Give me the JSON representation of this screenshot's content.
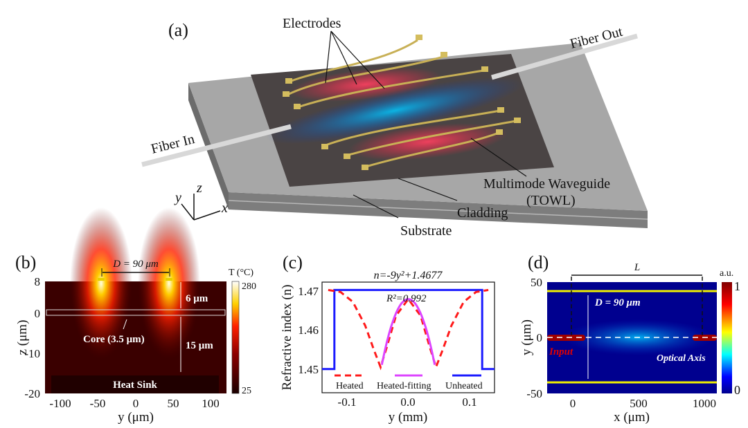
{
  "panel_a": {
    "label": "(a)",
    "electrodes": "Electrodes",
    "fiber_in": "Fiber In",
    "fiber_out": "Fiber Out",
    "waveguide": "Multimode Waveguide",
    "towl": "(TOWL)",
    "cladding": "Cladding",
    "substrate": "Substrate",
    "axes": {
      "y": "y",
      "z": "z",
      "x": "x"
    }
  },
  "panel_b": {
    "label": "(b)",
    "spacing": "D = 90 μm",
    "colorbar_title": "T (°C)",
    "colorbar_max": "280",
    "colorbar_min": "25",
    "dim_top": "6 μm",
    "dim_bottom": "15 μm",
    "core": "Core  (3.5 μm)",
    "heat_sink": "Heat Sink",
    "xlabel": "y (μm)",
    "ylabel": "z (μm)",
    "xticks": [
      "-100",
      "-50",
      "0",
      "50",
      "100"
    ],
    "yticks": [
      "8",
      "0",
      "-10",
      "-20"
    ]
  },
  "panel_d": {
    "label": "(d)",
    "length": "L",
    "spacing": "D = 90 μm",
    "input": "Input",
    "optical_axis": "Optical Axis",
    "colorbar_title": "a.u.",
    "colorbar_max": "1",
    "colorbar_min": "0",
    "xlabel": "x (μm)",
    "ylabel": "y (μm)",
    "xticks": [
      "0",
      "500",
      "1000"
    ],
    "yticks": [
      "50",
      "0",
      "-50"
    ]
  },
  "chart_data": {
    "type": "line",
    "panel_label": "(c)",
    "title": "n=-9y²+1.4677",
    "annotation": "R²=0.992",
    "xlabel": "y (mm)",
    "ylabel": "Refractive index (n)",
    "xlim": [
      -0.14,
      0.14
    ],
    "ylim": [
      1.444,
      1.472
    ],
    "xticks": [
      "-0.1",
      "0.0",
      "0.1"
    ],
    "yticks": [
      "1.47",
      "1.46",
      "1.45"
    ],
    "legend_position": "bottom",
    "series": [
      {
        "name": "Heated",
        "color": "#ff1a1a",
        "style": "dashed",
        "x": [
          -0.13,
          -0.11,
          -0.09,
          -0.07,
          -0.055,
          -0.045,
          -0.035,
          -0.02,
          0,
          0.02,
          0.035,
          0.045,
          0.055,
          0.07,
          0.09,
          0.11,
          0.13
        ],
        "y": [
          1.47,
          1.4695,
          1.467,
          1.461,
          1.4545,
          1.4505,
          1.4555,
          1.4635,
          1.4677,
          1.4635,
          1.4555,
          1.4505,
          1.4545,
          1.461,
          1.467,
          1.4695,
          1.47
        ]
      },
      {
        "name": "Heated-fitting",
        "color": "#dd44ff",
        "style": "solid",
        "fit": {
          "a": -9,
          "c": 1.4677,
          "range": [
            -0.043,
            0.043
          ]
        }
      },
      {
        "name": "Unheated",
        "color": "#1a1aff",
        "style": "solid",
        "x": [
          -0.14,
          -0.12,
          -0.12,
          0.12,
          0.12,
          0.14
        ],
        "y": [
          1.45,
          1.45,
          1.47,
          1.47,
          1.45,
          1.45
        ]
      }
    ]
  }
}
